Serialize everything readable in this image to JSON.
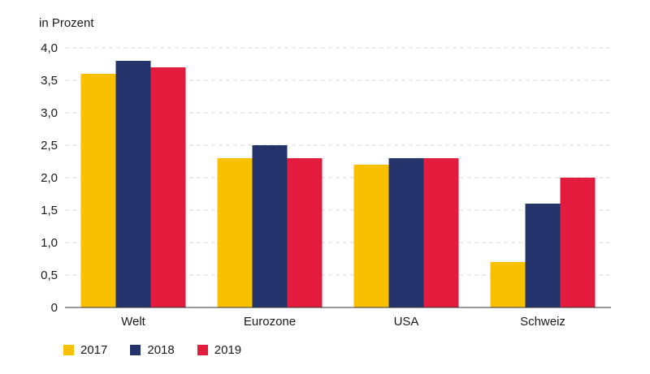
{
  "chart_data": {
    "type": "bar",
    "ylabel": "in Prozent",
    "categories": [
      "Welt",
      "Eurozone",
      "USA",
      "Schweiz"
    ],
    "series": [
      {
        "name": "2017",
        "color": "#f9c000",
        "values": [
          3.6,
          2.3,
          2.2,
          0.7
        ]
      },
      {
        "name": "2018",
        "color": "#24336b",
        "values": [
          3.8,
          2.5,
          2.3,
          1.6
        ]
      },
      {
        "name": "2019",
        "color": "#e31c3d",
        "values": [
          3.7,
          2.3,
          2.3,
          2.0
        ]
      }
    ],
    "ylim": [
      0,
      4
    ],
    "yticks": [
      "0",
      "0,5",
      "1,0",
      "1,5",
      "2,0",
      "2,5",
      "3,0",
      "3,5",
      "4,0"
    ],
    "grid": true,
    "legend_position": "bottom-left"
  }
}
